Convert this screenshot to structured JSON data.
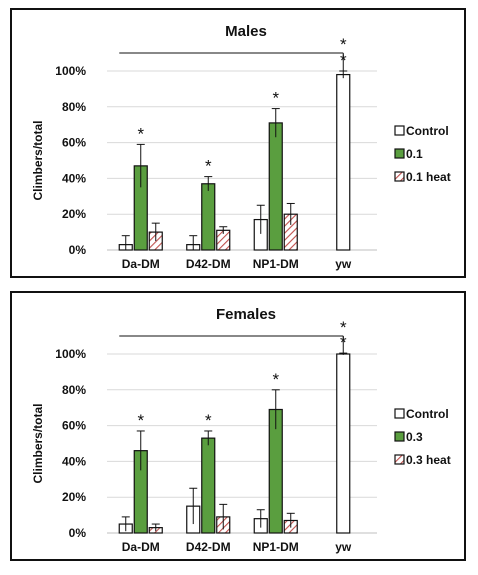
{
  "chart_data": [
    {
      "type": "bar",
      "title": "Males",
      "ylabel": "Climbers/total",
      "xlabel": "",
      "ylim": [
        0,
        100
      ],
      "yticks": [
        "0%",
        "20%",
        "40%",
        "60%",
        "80%",
        "100%"
      ],
      "grid": true,
      "legend_placement": "right",
      "categories": [
        "Da-DM",
        "D42-DM",
        "NP1-DM",
        "yw"
      ],
      "series": [
        {
          "name": "Control",
          "values": [
            3,
            3,
            17,
            98
          ],
          "errors": [
            5,
            5,
            8,
            2
          ],
          "color": "#ffffff",
          "pattern": "none"
        },
        {
          "name": "0.1",
          "values": [
            47,
            37,
            71,
            null
          ],
          "errors": [
            12,
            4,
            8,
            null
          ],
          "color": "#5a9e3f",
          "pattern": "none"
        },
        {
          "name": "0.1 heat",
          "values": [
            10,
            11,
            20,
            null
          ],
          "errors": [
            5,
            2,
            6,
            null
          ],
          "color": "#ffffff",
          "pattern": "hatch-red"
        }
      ],
      "significance": [
        {
          "category": "Da-DM",
          "series": "0.1",
          "label": "*"
        },
        {
          "category": "D42-DM",
          "series": "0.1",
          "label": "*"
        },
        {
          "category": "NP1-DM",
          "series": "0.1",
          "label": "*"
        },
        {
          "category": "yw",
          "series": "Control",
          "label": "*"
        }
      ],
      "bracket": {
        "from": "Da-DM",
        "to": "yw",
        "label": "*"
      }
    },
    {
      "type": "bar",
      "title": "Females",
      "ylabel": "Climbers/total",
      "xlabel": "",
      "ylim": [
        0,
        100
      ],
      "yticks": [
        "0%",
        "20%",
        "40%",
        "60%",
        "80%",
        "100%"
      ],
      "grid": true,
      "legend_placement": "right",
      "categories": [
        "Da-DM",
        "D42-DM",
        "NP1-DM",
        "yw"
      ],
      "series": [
        {
          "name": "Control",
          "values": [
            5,
            15,
            8,
            100
          ],
          "errors": [
            4,
            10,
            5,
            0.5
          ],
          "color": "#ffffff",
          "pattern": "none"
        },
        {
          "name": "0.3",
          "values": [
            46,
            53,
            69,
            null
          ],
          "errors": [
            11,
            4,
            11,
            null
          ],
          "color": "#5a9e3f",
          "pattern": "none"
        },
        {
          "name": "0.3 heat",
          "values": [
            3,
            9,
            7,
            null
          ],
          "errors": [
            2,
            7,
            4,
            null
          ],
          "color": "#ffffff",
          "pattern": "hatch-red"
        }
      ],
      "significance": [
        {
          "category": "Da-DM",
          "series": "0.3",
          "label": "*"
        },
        {
          "category": "D42-DM",
          "series": "0.3",
          "label": "*"
        },
        {
          "category": "NP1-DM",
          "series": "0.3",
          "label": "*"
        },
        {
          "category": "yw",
          "series": "Control",
          "label": "*"
        }
      ],
      "bracket": {
        "from": "Da-DM",
        "to": "yw",
        "label": "*"
      }
    }
  ]
}
